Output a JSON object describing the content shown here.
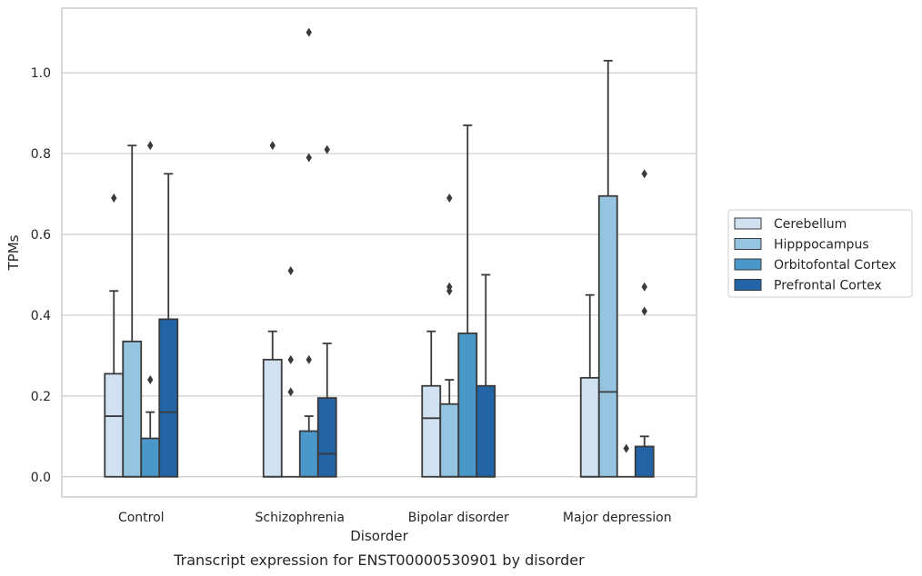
{
  "chart_data": {
    "type": "boxplot",
    "caption": "Transcript expression for ENST00000530901 by disorder",
    "xlabel": "Disorder",
    "ylabel": "TPMs",
    "ylim": [
      -0.05,
      1.16
    ],
    "yticks": [
      0.0,
      0.2,
      0.4,
      0.6,
      0.8,
      1.0
    ],
    "ytick_labels": [
      "0.0",
      "0.2",
      "0.4",
      "0.6",
      "0.8",
      "1.0"
    ],
    "grid": true,
    "legend_placement": "right",
    "categories": [
      "Control",
      "Schizophrenia",
      "Bipolar disorder",
      "Major depression"
    ],
    "series": [
      {
        "name": "Cerebellum",
        "color": "#d0e1f2",
        "boxes": [
          {
            "whislo": 0.0,
            "q1": 0.0,
            "med": 0.15,
            "q3": 0.255,
            "whishi": 0.46,
            "fliers": [
              0.69
            ]
          },
          {
            "whislo": 0.0,
            "q1": 0.0,
            "med": 0.0,
            "q3": 0.29,
            "whishi": 0.36,
            "fliers": [
              0.82
            ]
          },
          {
            "whislo": 0.0,
            "q1": 0.0,
            "med": 0.145,
            "q3": 0.225,
            "whishi": 0.36,
            "fliers": []
          },
          {
            "whislo": 0.0,
            "q1": 0.0,
            "med": 0.0,
            "q3": 0.245,
            "whishi": 0.45,
            "fliers": []
          }
        ]
      },
      {
        "name": "Hipppocampus",
        "color": "#94c4df",
        "boxes": [
          {
            "whislo": 0.0,
            "q1": 0.0,
            "med": 0.0,
            "q3": 0.335,
            "whishi": 0.82,
            "fliers": []
          },
          {
            "whislo": 0.0,
            "q1": 0.0,
            "med": 0.0,
            "q3": 0.0,
            "whishi": 0.0,
            "fliers": [
              0.21,
              0.29,
              0.51
            ]
          },
          {
            "whislo": 0.0,
            "q1": 0.0,
            "med": 0.0,
            "q3": 0.18,
            "whishi": 0.24,
            "fliers": [
              0.46,
              0.47,
              0.69
            ]
          },
          {
            "whislo": 0.0,
            "q1": 0.0,
            "med": 0.21,
            "q3": 0.695,
            "whishi": 1.03,
            "fliers": []
          }
        ]
      },
      {
        "name": "Orbitofontal Cortex",
        "color": "#4a98c9",
        "boxes": [
          {
            "whislo": 0.0,
            "q1": 0.0,
            "med": 0.0,
            "q3": 0.095,
            "whishi": 0.16,
            "fliers": [
              0.24,
              0.82
            ]
          },
          {
            "whislo": 0.0,
            "q1": 0.0,
            "med": 0.0,
            "q3": 0.113,
            "whishi": 0.15,
            "fliers": [
              0.29,
              0.79,
              1.1
            ]
          },
          {
            "whislo": 0.0,
            "q1": 0.0,
            "med": 0.0,
            "q3": 0.355,
            "whishi": 0.87,
            "fliers": []
          },
          {
            "whislo": 0.0,
            "q1": 0.0,
            "med": 0.0,
            "q3": 0.0,
            "whishi": 0.0,
            "fliers": [
              0.07
            ]
          }
        ]
      },
      {
        "name": "Prefrontal Cortex",
        "color": "#2264a6",
        "boxes": [
          {
            "whislo": 0.0,
            "q1": 0.0,
            "med": 0.16,
            "q3": 0.39,
            "whishi": 0.75,
            "fliers": []
          },
          {
            "whislo": 0.0,
            "q1": 0.0,
            "med": 0.057,
            "q3": 0.195,
            "whishi": 0.33,
            "fliers": [
              0.81
            ]
          },
          {
            "whislo": 0.0,
            "q1": 0.0,
            "med": 0.0,
            "q3": 0.225,
            "whishi": 0.5,
            "fliers": []
          },
          {
            "whislo": 0.0,
            "q1": 0.0,
            "med": 0.0,
            "q3": 0.075,
            "whishi": 0.1,
            "fliers": [
              0.41,
              0.47,
              0.75
            ]
          }
        ]
      }
    ]
  }
}
